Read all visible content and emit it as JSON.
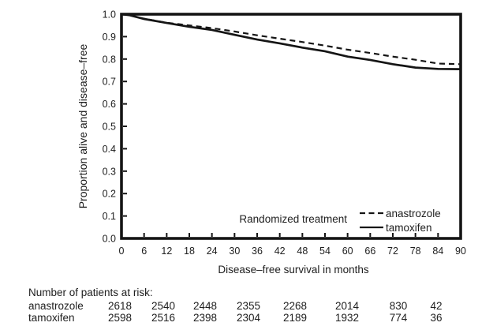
{
  "chart_data": {
    "type": "line",
    "subtype": "kaplan-meier-survival",
    "title": "",
    "xlabel": "Disease–free survival in months",
    "ylabel": "Proportion alive and disease–free",
    "xlim": [
      0,
      90
    ],
    "ylim": [
      0.0,
      1.0
    ],
    "x_ticks": [
      0,
      6,
      12,
      18,
      24,
      30,
      36,
      42,
      48,
      54,
      60,
      66,
      72,
      78,
      84,
      90
    ],
    "y_ticks": [
      0.0,
      0.1,
      0.2,
      0.3,
      0.4,
      0.5,
      0.6,
      0.7,
      0.8,
      0.9,
      1.0
    ],
    "grid": false,
    "legend_title": "Randomized treatment",
    "legend_position": "inside-bottom-right",
    "line_color": "#151515",
    "x": [
      0,
      2,
      6,
      12,
      18,
      24,
      30,
      36,
      42,
      48,
      54,
      60,
      66,
      72,
      78,
      84,
      90
    ],
    "series": [
      {
        "name": "anastrozole",
        "line_style": "dashed",
        "color": "#151515",
        "values": [
          1.0,
          0.997,
          0.98,
          0.962,
          0.95,
          0.938,
          0.923,
          0.906,
          0.891,
          0.876,
          0.86,
          0.842,
          0.827,
          0.811,
          0.797,
          0.78,
          0.777
        ]
      },
      {
        "name": "tamoxifen",
        "line_style": "solid",
        "color": "#151515",
        "values": [
          1.0,
          0.996,
          0.979,
          0.961,
          0.944,
          0.93,
          0.908,
          0.887,
          0.87,
          0.851,
          0.835,
          0.811,
          0.796,
          0.777,
          0.762,
          0.756,
          0.755
        ]
      }
    ],
    "risk_table": {
      "title": "Number of patients at risk:",
      "rows": [
        {
          "label": "anastrozole",
          "counts": [
            "2618",
            "2540",
            "2448",
            "2355",
            "2268",
            "2014",
            "830",
            "42"
          ]
        },
        {
          "label": "tamoxifen",
          "counts": [
            "2598",
            "2516",
            "2398",
            "2304",
            "2189",
            "1932",
            "774",
            "36"
          ]
        }
      ]
    }
  }
}
